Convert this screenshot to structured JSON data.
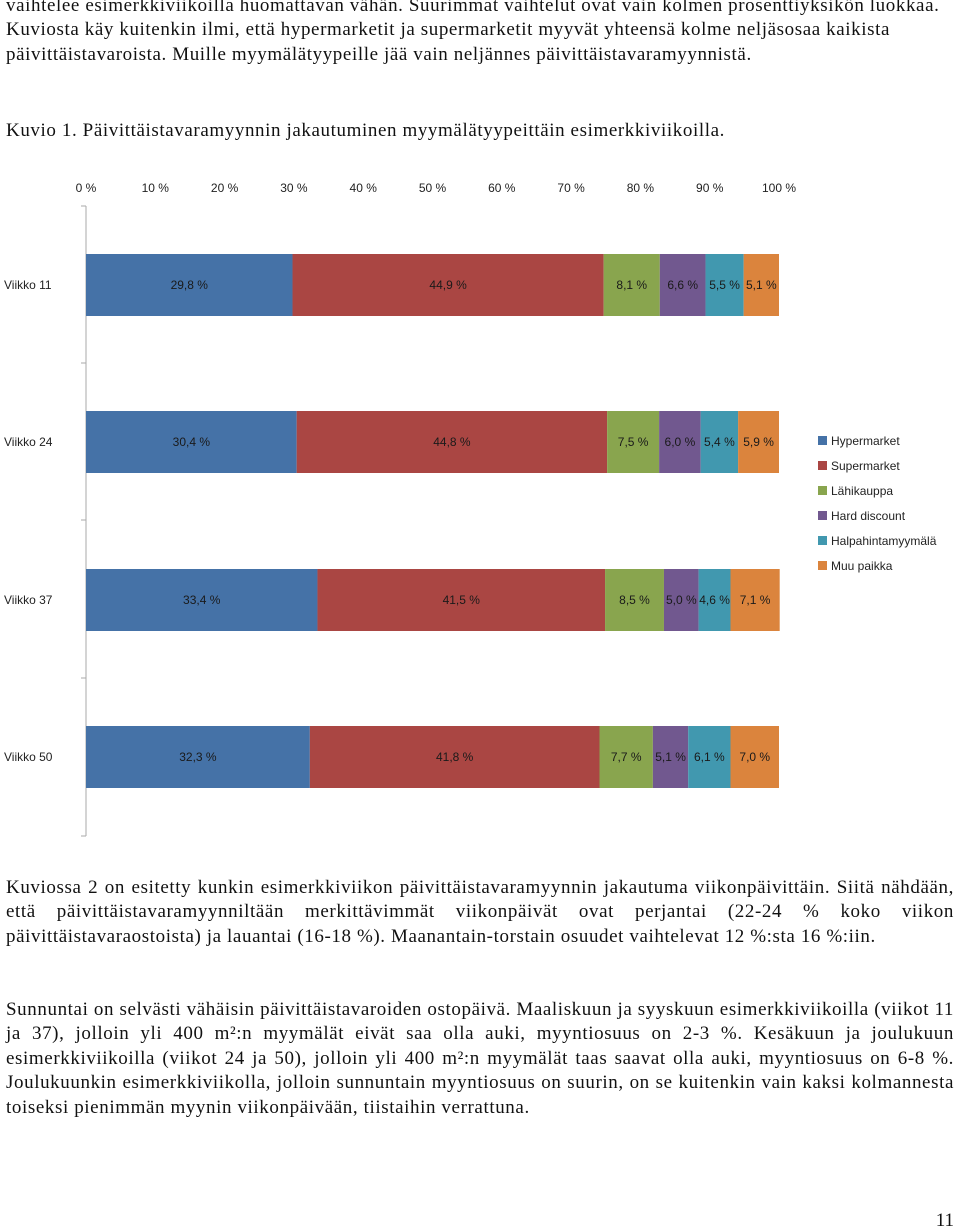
{
  "text": {
    "para_top": "vaihtelee esimerkkiviikoilla huomattavan vähän. Suurimmat vaihtelut ovat vain kolmen prosenttiyksikön luokkaa. Kuviosta käy kuitenkin ilmi, että hypermarketit ja supermarketit myyvät yhteensä kolme neljäsosaa kaikista päivittäistavaroista. Muille myymälätyypeille jää vain neljännes päivittäistavaramyynnistä.",
    "caption": "Kuvio 1. Päivittäistavaramyynnin jakautuminen myymälätyypeittäin esimerkkiviikoilla.",
    "para_mid": "Kuviossa 2 on esitetty kunkin esimerkkiviikon päivittäistavaramyynnin jakautuma viikonpäivittäin. Siitä nähdään, että päivittäistavaramyynniltään merkittävimmät viikonpäivät ovat perjantai (22-24 % koko viikon päivittäistavaraostoista) ja lauantai (16-18 %). Maanantain-torstain osuudet vaihtelevat 12 %:sta 16 %:iin.",
    "para_bottom": "Sunnuntai on selvästi vähäisin päivittäistavaroiden ostopäivä. Maaliskuun ja syyskuun esimerkkiviikoilla (viikot 11 ja 37), jolloin yli 400 m²:n myymälät eivät saa olla auki, myyntiosuus on 2-3 %. Kesäkuun ja joulukuun esimerkkiviikoilla (viikot 24 ja 50), jolloin yli 400 m²:n myymälät taas saavat olla auki, myyntiosuus on 6-8 %. Joulukuunkin esimerkkiviikolla, jolloin sunnuntain myyntiosuus on suurin, on se kuitenkin vain kaksi kolmannesta toiseksi pienimmän myynin viikonpäivään, tiistaihin verrattuna.",
    "page_number": "11"
  },
  "chart_data": {
    "type": "bar",
    "orientation": "horizontal",
    "stacked": true,
    "xlim": [
      0,
      100
    ],
    "x_ticks": [
      "0 %",
      "10 %",
      "20 %",
      "30 %",
      "40 %",
      "50 %",
      "60 %",
      "70 %",
      "80 %",
      "90 %",
      "100 %"
    ],
    "x_axis_position": "top",
    "grid": false,
    "legend_position": "right",
    "categories": [
      "Viikko 11",
      "Viikko 24",
      "Viikko 37",
      "Viikko 50"
    ],
    "series": [
      {
        "name": "Hypermarket",
        "color": "#4572a7",
        "values": [
          29.8,
          30.4,
          33.4,
          32.3
        ],
        "labels": [
          "29,8 %",
          "30,4 %",
          "33,4 %",
          "32,3 %"
        ]
      },
      {
        "name": "Supermarket",
        "color": "#aa4643",
        "values": [
          44.9,
          44.8,
          41.5,
          41.8
        ],
        "labels": [
          "44,9 %",
          "44,8 %",
          "41,5 %",
          "41,8 %"
        ]
      },
      {
        "name": "Lähikauppa",
        "color": "#89a54e",
        "values": [
          8.1,
          7.5,
          8.5,
          7.7
        ],
        "labels": [
          "8,1 %",
          "7,5 %",
          "8,5 %",
          "7,7 %"
        ]
      },
      {
        "name": "Hard discount",
        "color": "#71588f",
        "values": [
          6.6,
          6.0,
          5.0,
          5.1
        ],
        "labels": [
          "6,6 %",
          "6,0 %",
          "5,0 %",
          "5,1 %"
        ]
      },
      {
        "name": "Halpahintamyymälä",
        "color": "#4198af",
        "values": [
          5.5,
          5.4,
          4.6,
          6.1
        ],
        "labels": [
          "5,5 %",
          "5,4 %",
          "4,6 %",
          "6,1 %"
        ]
      },
      {
        "name": "Muu paikka",
        "color": "#db843d",
        "values": [
          5.1,
          5.9,
          7.1,
          7.0
        ],
        "labels": [
          "5,1 %",
          "5,9 %",
          "7,1 %",
          "7,0 %"
        ]
      }
    ]
  }
}
